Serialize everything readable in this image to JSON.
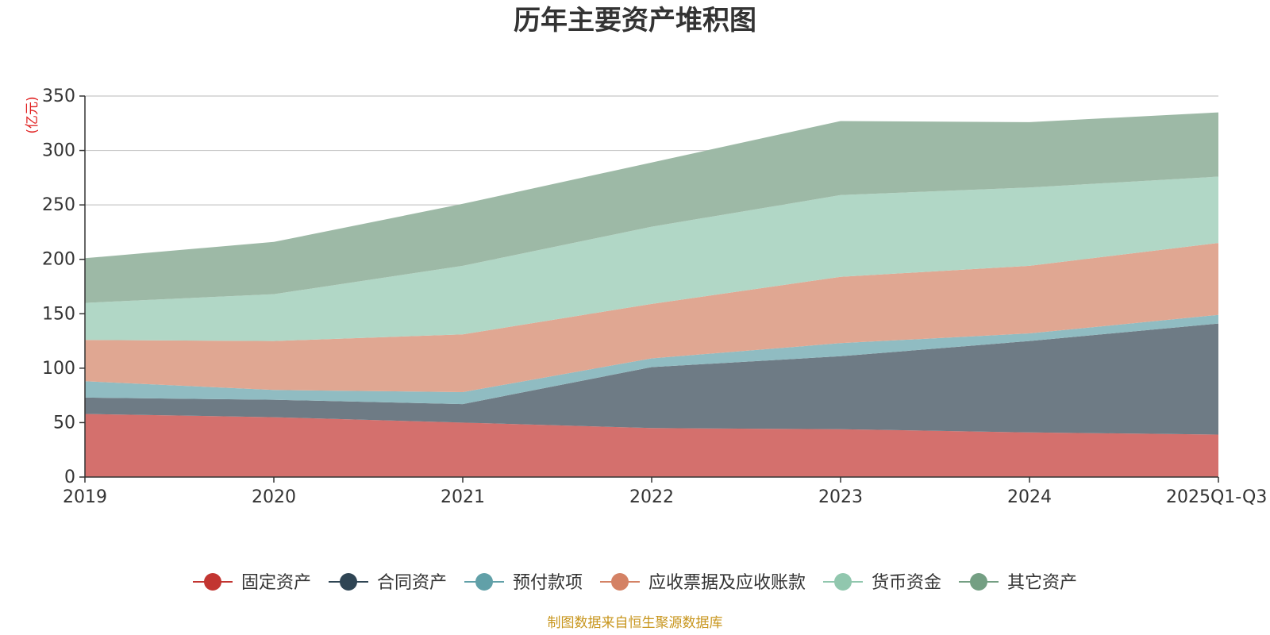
{
  "chart_data": {
    "type": "area",
    "stacked": true,
    "title": "历年主要资产堆积图",
    "unit_label": "(亿元)",
    "categories": [
      "2019",
      "2020",
      "2021",
      "2022",
      "2023",
      "2024",
      "2025Q1-Q3"
    ],
    "ylim": [
      0,
      350
    ],
    "yticks": [
      0,
      50,
      100,
      150,
      200,
      250,
      300,
      350
    ],
    "grid": true,
    "legend_position": "bottom",
    "series": [
      {
        "name": "固定资产",
        "color": "#c23531",
        "area_color": "#d4706d",
        "values": [
          58,
          55,
          50,
          45,
          44,
          41,
          39
        ]
      },
      {
        "name": "合同资产",
        "color": "#2f4554",
        "area_color": "#6e7b85",
        "values": [
          15,
          16,
          17,
          56,
          67,
          84,
          102
        ]
      },
      {
        "name": "预付款项",
        "color": "#61a0a8",
        "area_color": "#90bcc2",
        "values": [
          15,
          9,
          11,
          8,
          12,
          7,
          8
        ]
      },
      {
        "name": "应收票据及应收账款",
        "color": "#d48265",
        "area_color": "#e0a792",
        "values": [
          38,
          45,
          53,
          50,
          61,
          62,
          66
        ]
      },
      {
        "name": "货币资金",
        "color": "#91c7ae",
        "area_color": "#b1d7c6",
        "values": [
          34,
          43,
          63,
          71,
          75,
          72,
          61
        ]
      },
      {
        "name": "其它资产",
        "color": "#749f83",
        "area_color": "#9db9a6",
        "values": [
          41,
          48,
          57,
          59,
          68,
          60,
          59
        ]
      }
    ],
    "source_note": "制图数据来自恒生聚源数据库"
  }
}
